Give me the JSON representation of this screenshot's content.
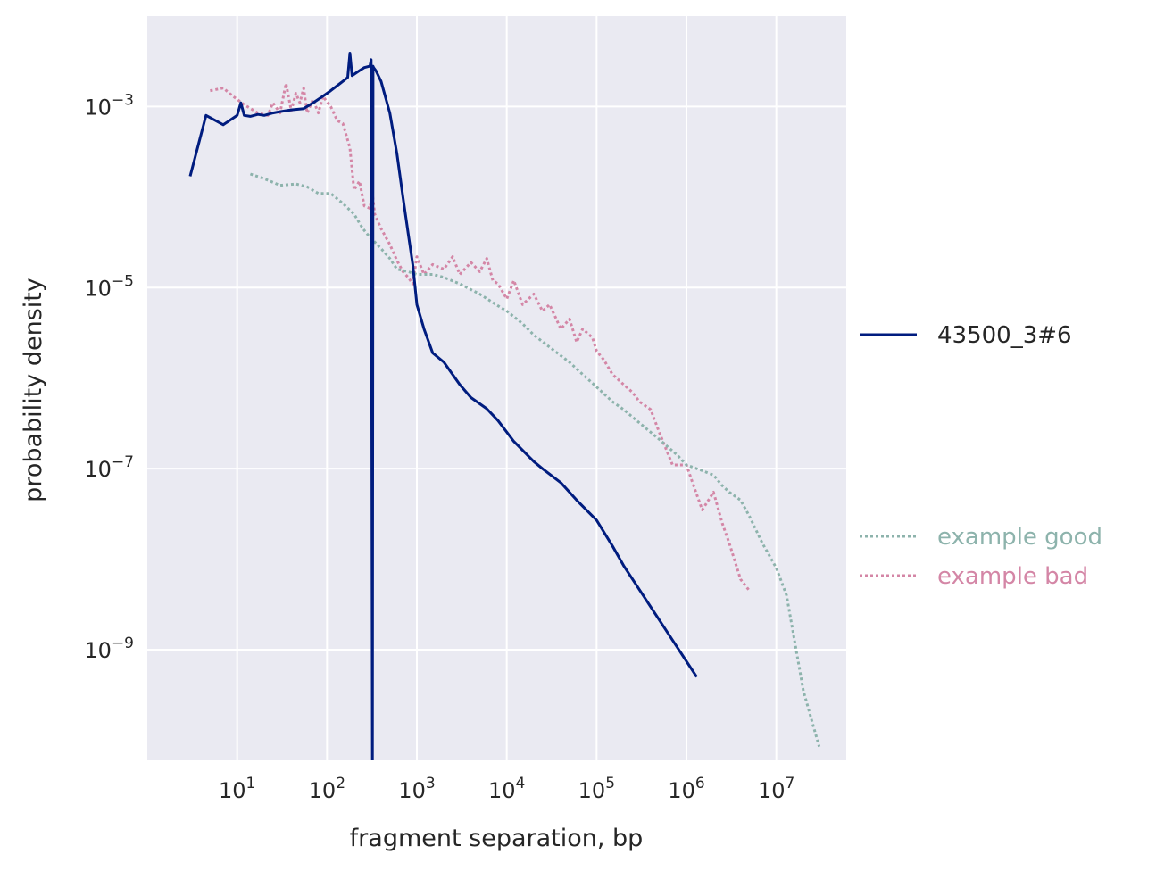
{
  "chart_data": {
    "type": "line",
    "xlabel": "fragment separation, bp",
    "ylabel": "probability density",
    "xscale": "log",
    "yscale": "log",
    "xlim": [
      1.0,
      60000000
    ],
    "ylim": [
      6e-11,
      0.01
    ],
    "grid": true,
    "x_ticks": [
      {
        "value": 10,
        "base": "10",
        "exp": "1"
      },
      {
        "value": 100,
        "base": "10",
        "exp": "2"
      },
      {
        "value": 1000,
        "base": "10",
        "exp": "3"
      },
      {
        "value": 10000,
        "base": "10",
        "exp": "4"
      },
      {
        "value": 100000,
        "base": "10",
        "exp": "5"
      },
      {
        "value": 1000000,
        "base": "10",
        "exp": "6"
      },
      {
        "value": 10000000,
        "base": "10",
        "exp": "7"
      }
    ],
    "y_ticks": [
      {
        "value": 0.001,
        "base": "10",
        "exp": "−3"
      },
      {
        "value": 1e-05,
        "base": "10",
        "exp": "−5"
      },
      {
        "value": 1e-07,
        "base": "10",
        "exp": "−7"
      },
      {
        "value": 1e-09,
        "base": "10",
        "exp": "−9"
      }
    ],
    "series": [
      {
        "name": "43500_3#6",
        "color": "#001c7f",
        "style": "solid",
        "x": [
          3,
          4.5,
          7,
          10,
          11,
          12,
          14,
          17,
          20,
          25,
          30,
          40,
          55,
          70,
          90,
          110,
          140,
          170,
          180,
          190,
          230,
          260,
          300,
          310,
          320,
          325,
          330,
          350,
          400,
          500,
          600,
          700,
          800,
          900,
          1000,
          1200,
          1500,
          2000,
          3000,
          4000,
          6000,
          8000,
          12000,
          20000,
          25000,
          40000,
          60000,
          100000,
          150000,
          200000,
          1300000
        ],
        "y": [
          0.00017,
          0.0008,
          0.00063,
          0.0008,
          0.0011,
          0.0008,
          0.00078,
          0.00082,
          0.0008,
          0.00085,
          0.00088,
          0.00092,
          0.00095,
          0.0011,
          0.0013,
          0.0015,
          0.0018,
          0.0021,
          0.0039,
          0.0022,
          0.0025,
          0.0027,
          0.0028,
          0.0033,
          6e-11,
          0.0028,
          0.0027,
          0.0025,
          0.0019,
          0.00085,
          0.0003,
          0.0001,
          4e-05,
          1.8e-05,
          6.5e-06,
          3.5e-06,
          1.9e-06,
          1.5e-06,
          8.5e-07,
          6.1e-07,
          4.6e-07,
          3.4e-07,
          2e-07,
          1.2e-07,
          1e-07,
          7e-08,
          4.5e-08,
          2.7e-08,
          1.4e-08,
          8.5e-09,
          5e-10
        ]
      },
      {
        "name": "example good",
        "color": "#8db3ac",
        "style": "dotted",
        "x": [
          14,
          20,
          30,
          45,
          60,
          80,
          110,
          150,
          200,
          250,
          300,
          350,
          400,
          500,
          600,
          800,
          1000,
          1500,
          2000,
          3000,
          5000,
          8000,
          10000,
          15000,
          20000,
          30000,
          50000,
          70000,
          100000,
          150000,
          200000,
          300000,
          500000,
          800000,
          1000000,
          1500000,
          2000000,
          2500000,
          3000000,
          4000000,
          5000000,
          7000000,
          10000000,
          13000000,
          20000000,
          30000000
        ],
        "y": [
          0.00018,
          0.00016,
          0.000135,
          0.00014,
          0.00013,
          0.00011,
          0.00011,
          8.5e-05,
          6.5e-05,
          4.5e-05,
          3.6e-05,
          3.1e-05,
          2.7e-05,
          2.1e-05,
          1.6e-05,
          1.5e-05,
          1.4e-05,
          1.4e-05,
          1.3e-05,
          1.1e-05,
          8.5e-06,
          6.3e-06,
          5.5e-06,
          4e-06,
          3e-06,
          2.2e-06,
          1.5e-06,
          1.1e-06,
          8e-07,
          5.5e-07,
          4.5e-07,
          3.2e-07,
          2.1e-07,
          1.4e-07,
          1.1e-07,
          9.5e-08,
          8.5e-08,
          6.5e-08,
          5.5e-08,
          4.5e-08,
          3e-08,
          1.5e-08,
          8e-09,
          4e-09,
          3.5e-10,
          8.5e-11
        ]
      },
      {
        "name": "example bad",
        "color": "#d486a6",
        "style": "dotted",
        "x": [
          5,
          7,
          9,
          12,
          17,
          22,
          25,
          30,
          35,
          40,
          45,
          50,
          55,
          60,
          70,
          80,
          90,
          110,
          130,
          150,
          180,
          200,
          230,
          260,
          300,
          320,
          340,
          400,
          500,
          600,
          700,
          800,
          900,
          1000,
          1200,
          1500,
          2000,
          2500,
          3000,
          4000,
          5000,
          6000,
          7000,
          8000,
          10000,
          12000,
          15000,
          20000,
          25000,
          30000,
          40000,
          50000,
          60000,
          70000,
          90000,
          100000,
          120000,
          150000,
          200000,
          250000,
          300000,
          400000,
          500000,
          700000,
          1000000,
          1200000,
          1500000,
          2000000,
          2500000,
          3000000,
          4000000,
          5000000
        ],
        "y": [
          0.0015,
          0.0016,
          0.0013,
          0.00105,
          0.00085,
          0.0008,
          0.0011,
          0.00085,
          0.0018,
          0.0009,
          0.0014,
          0.0011,
          0.0016,
          0.00085,
          0.0012,
          0.00085,
          0.0013,
          0.001,
          0.0007,
          0.00065,
          0.00035,
          0.00012,
          0.00015,
          8e-05,
          7.5e-05,
          0.00011,
          6.5e-05,
          4.5e-05,
          3e-05,
          2e-05,
          1.5e-05,
          1.3e-05,
          1.1e-05,
          2.2e-05,
          1.4e-05,
          1.8e-05,
          1.6e-05,
          2.2e-05,
          1.4e-05,
          1.9e-05,
          1.5e-05,
          2.1e-05,
          1.2e-05,
          1.1e-05,
          7.5e-06,
          1.2e-05,
          6.5e-06,
          8.5e-06,
          5.5e-06,
          6.5e-06,
          3.5e-06,
          4.5e-06,
          2.5e-06,
          3.5e-06,
          2.8e-06,
          2e-06,
          1.6e-06,
          1.1e-06,
          8.5e-07,
          7e-07,
          5.5e-07,
          4.5e-07,
          2.5e-07,
          1.1e-07,
          1.1e-07,
          6.5e-08,
          3.5e-08,
          5.5e-08,
          2.5e-08,
          1.5e-08,
          6e-09,
          4.5e-09
        ]
      }
    ]
  },
  "legend": {
    "entries": [
      {
        "name": "43500_3#6",
        "color": "#001c7f",
        "style": "solid"
      },
      {
        "name": "example good",
        "color": "#8db3ac",
        "style": "dotted"
      },
      {
        "name": "example bad",
        "color": "#d486a6",
        "style": "dotted"
      }
    ]
  },
  "colors": {
    "plot_background": "#eaeaf2",
    "grid": "#ffffff",
    "text": "#262626"
  }
}
